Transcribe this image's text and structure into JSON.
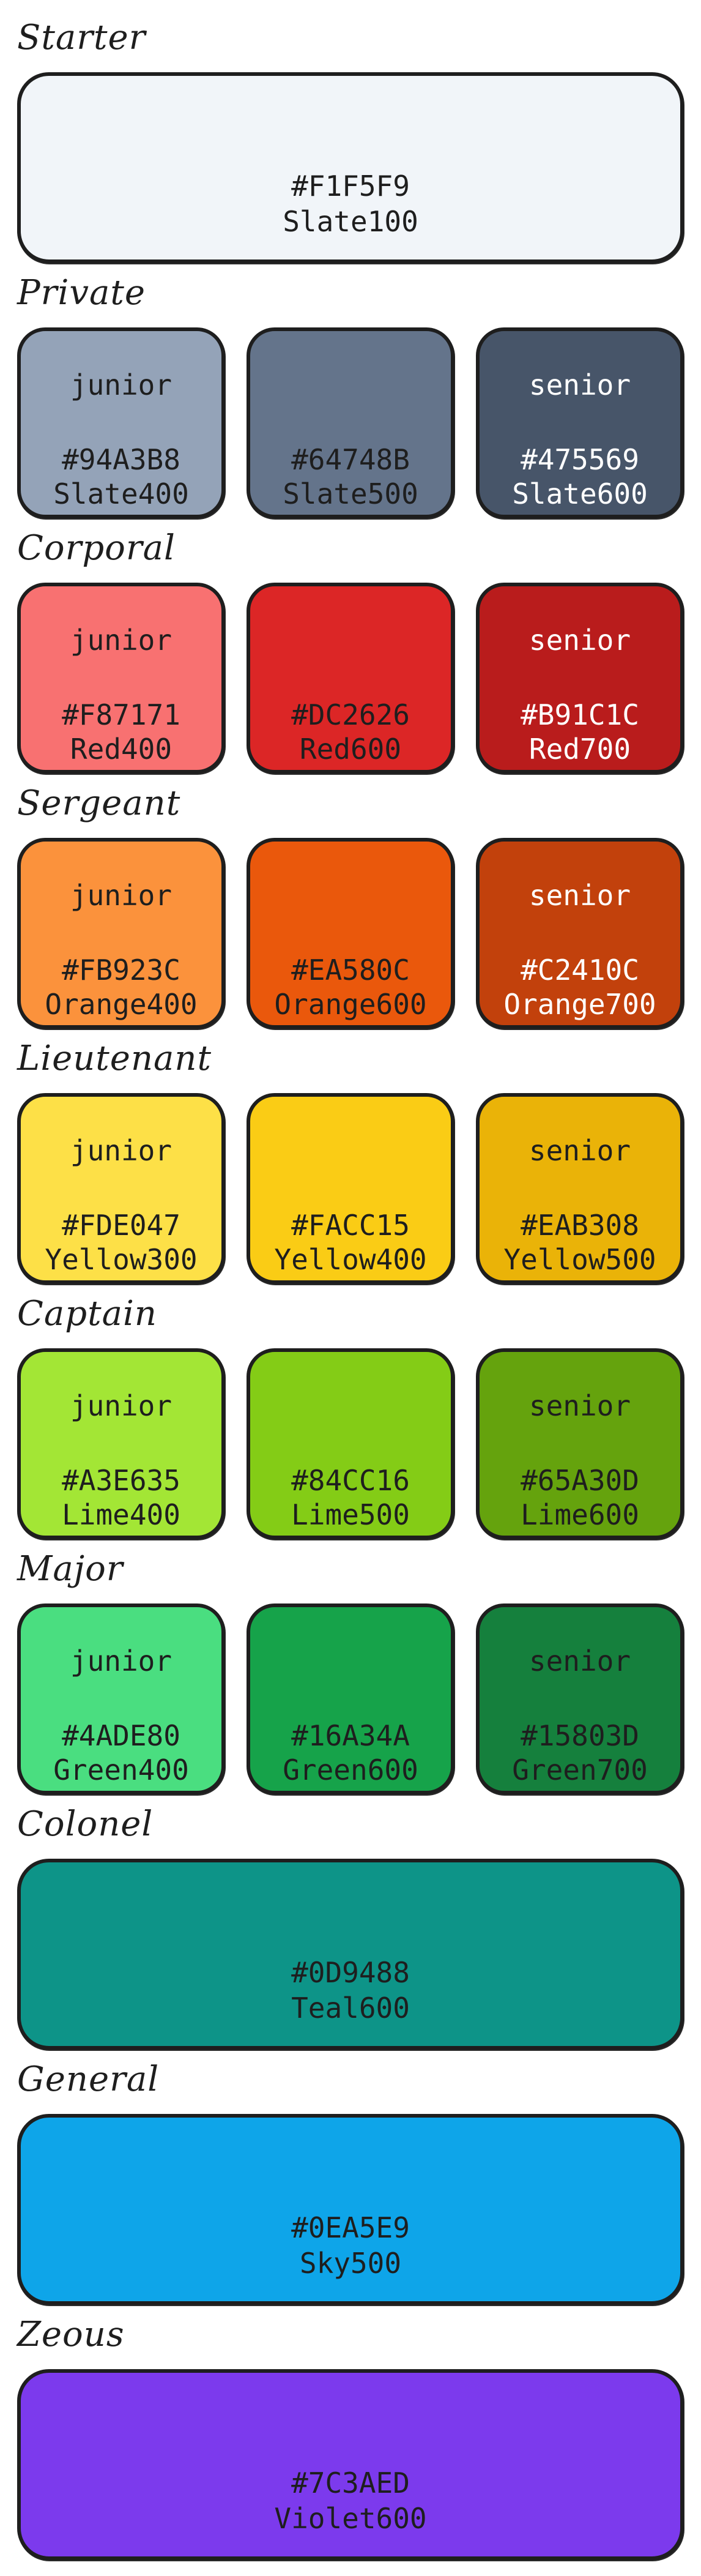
{
  "ranks": [
    {
      "title": "Starter",
      "layout": "wide",
      "swatches": [
        {
          "tier": "",
          "hex": "#F1F5F9",
          "name": "Slate100",
          "text": "dark"
        }
      ]
    },
    {
      "title": "Private",
      "layout": "triple",
      "swatches": [
        {
          "tier": "junior",
          "hex": "#94A3B8",
          "name": "Slate400",
          "text": "dark"
        },
        {
          "tier": "",
          "hex": "#64748B",
          "name": "Slate500",
          "text": "dark"
        },
        {
          "tier": "senior",
          "hex": "#475569",
          "name": "Slate600",
          "text": "light"
        }
      ]
    },
    {
      "title": "Corporal",
      "layout": "triple",
      "swatches": [
        {
          "tier": "junior",
          "hex": "#F87171",
          "name": "Red400",
          "text": "dark"
        },
        {
          "tier": "",
          "hex": "#DC2626",
          "name": "Red600",
          "text": "dark"
        },
        {
          "tier": "senior",
          "hex": "#B91C1C",
          "name": "Red700",
          "text": "light"
        }
      ]
    },
    {
      "title": "Sergeant",
      "layout": "triple",
      "swatches": [
        {
          "tier": "junior",
          "hex": "#FB923C",
          "name": "Orange400",
          "text": "dark"
        },
        {
          "tier": "",
          "hex": "#EA580C",
          "name": "Orange600",
          "text": "dark"
        },
        {
          "tier": "senior",
          "hex": "#C2410C",
          "name": "Orange700",
          "text": "light"
        }
      ]
    },
    {
      "title": "Lieutenant",
      "layout": "triple",
      "swatches": [
        {
          "tier": "junior",
          "hex": "#FDE047",
          "name": "Yellow300",
          "text": "dark"
        },
        {
          "tier": "",
          "hex": "#FACC15",
          "name": "Yellow400",
          "text": "dark"
        },
        {
          "tier": "senior",
          "hex": "#EAB308",
          "name": "Yellow500",
          "text": "dark"
        }
      ]
    },
    {
      "title": "Captain",
      "layout": "triple",
      "swatches": [
        {
          "tier": "junior",
          "hex": "#A3E635",
          "name": "Lime400",
          "text": "dark"
        },
        {
          "tier": "",
          "hex": "#84CC16",
          "name": "Lime500",
          "text": "dark"
        },
        {
          "tier": "senior",
          "hex": "#65A30D",
          "name": "Lime600",
          "text": "dark"
        }
      ]
    },
    {
      "title": "Major",
      "layout": "triple",
      "swatches": [
        {
          "tier": "junior",
          "hex": "#4ADE80",
          "name": "Green400",
          "text": "dark"
        },
        {
          "tier": "",
          "hex": "#16A34A",
          "name": "Green600",
          "text": "dark"
        },
        {
          "tier": "senior",
          "hex": "#15803D",
          "name": "Green700",
          "text": "dark"
        }
      ]
    },
    {
      "title": "Colonel",
      "layout": "wide",
      "swatches": [
        {
          "tier": "",
          "hex": "#0D9488",
          "name": "Teal600",
          "text": "dark"
        }
      ]
    },
    {
      "title": "General",
      "layout": "wide",
      "swatches": [
        {
          "tier": "",
          "hex": "#0EA5E9",
          "name": "Sky500",
          "text": "dark"
        }
      ]
    },
    {
      "title": "Zeous",
      "layout": "wide",
      "swatches": [
        {
          "tier": "",
          "hex": "#7C3AED",
          "name": "Violet600",
          "text": "dark"
        }
      ]
    }
  ]
}
